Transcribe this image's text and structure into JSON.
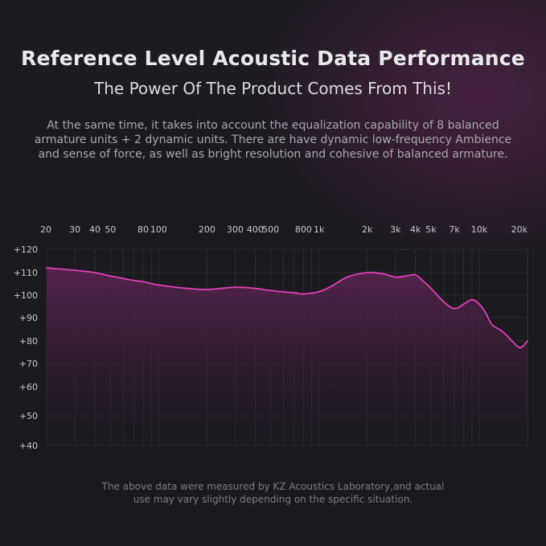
{
  "header": {
    "title": "Reference Level Acoustic Data Performance",
    "subtitle": "The Power Of The Product Comes From This!",
    "description_lines": [
      "At the same time, it takes into account the equalization capability of 8 balanced",
      "armature units + 2 dynamic units. There are have dynamic low-frequency Ambience",
      "and sense of force, as well as bright resolution and cohesive of balanced armature."
    ]
  },
  "footer": {
    "note_lines": [
      "The above data were measured by KZ Acoustics Laboratory,and actual",
      "use may vary slightly depending on the specific situation."
    ]
  },
  "colors": {
    "curve": "#e040b8",
    "fill_top": "#5a2350",
    "fill_bottom": "#221a24",
    "grid": "#3a3840"
  },
  "chart_data": {
    "type": "area",
    "title": "",
    "xlabel": "",
    "ylabel": "",
    "x_scale": "log",
    "xlim": [
      20,
      20000
    ],
    "x_ticks": [
      {
        "value": 20,
        "label": "20"
      },
      {
        "value": 30,
        "label": "30"
      },
      {
        "value": 40,
        "label": "40"
      },
      {
        "value": 50,
        "label": "50"
      },
      {
        "value": 80,
        "label": "80"
      },
      {
        "value": 100,
        "label": "100"
      },
      {
        "value": 200,
        "label": "200"
      },
      {
        "value": 300,
        "label": "300"
      },
      {
        "value": 400,
        "label": "400"
      },
      {
        "value": 500,
        "label": "500"
      },
      {
        "value": 800,
        "label": "800"
      },
      {
        "value": 1000,
        "label": "1k"
      },
      {
        "value": 2000,
        "label": "2k"
      },
      {
        "value": 3000,
        "label": "3k"
      },
      {
        "value": 4000,
        "label": "4k"
      },
      {
        "value": 5000,
        "label": "5k"
      },
      {
        "value": 7000,
        "label": "7k"
      },
      {
        "value": 10000,
        "label": "10k"
      },
      {
        "value": 20000,
        "label": "20k"
      }
    ],
    "y_ticks": [
      {
        "value": 120,
        "label": "+120"
      },
      {
        "value": 110,
        "label": "+110"
      },
      {
        "value": 100,
        "label": "+100"
      },
      {
        "value": 90,
        "label": "+90"
      },
      {
        "value": 80,
        "label": "+80"
      },
      {
        "value": 70,
        "label": "+70"
      },
      {
        "value": 60,
        "label": "+60"
      },
      {
        "value": 50,
        "label": "+50"
      },
      {
        "value": 40,
        "label": "+40"
      }
    ],
    "grid": true,
    "series": [
      {
        "x": [
          20,
          30,
          40,
          50,
          70,
          80,
          100,
          150,
          200,
          300,
          400,
          500,
          700,
          800,
          1000,
          1200,
          1500,
          2000,
          2500,
          3000,
          3500,
          4000,
          4500,
          5000,
          6000,
          7000,
          8000,
          9000,
          10000,
          11000,
          12000,
          14000,
          16000,
          18000,
          20000
        ],
        "y": [
          112,
          111,
          110,
          108.5,
          106.5,
          106,
          104.5,
          103,
          102.5,
          103.5,
          103,
          102,
          101,
          100.5,
          101.5,
          104,
          108,
          110,
          109.5,
          108,
          108.5,
          109,
          106,
          103,
          97,
          94,
          96,
          98,
          96,
          92,
          87,
          84,
          80,
          77,
          80
        ]
      }
    ]
  }
}
